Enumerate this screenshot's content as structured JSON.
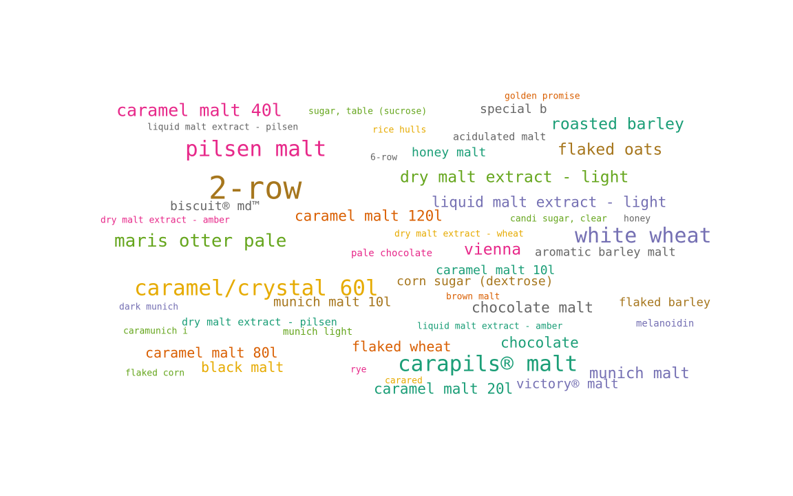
{
  "palette": {
    "teal": "#1b9e77",
    "orange": "#d95f02",
    "purple": "#7570b3",
    "pink": "#e7298a",
    "green": "#66a61e",
    "gold": "#e6ab02",
    "brown": "#a6761d",
    "gray": "#666666"
  },
  "words": [
    {
      "text": "golden promise",
      "color": "orange"
    },
    {
      "text": "caramel malt 40l",
      "color": "pink"
    },
    {
      "text": "sugar, table (sucrose)",
      "color": "green"
    },
    {
      "text": "special b",
      "color": "gray"
    },
    {
      "text": "liquid malt extract - pilsen",
      "color": "gray"
    },
    {
      "text": "rice hulls",
      "color": "gold"
    },
    {
      "text": "roasted barley",
      "color": "teal"
    },
    {
      "text": "acidulated malt",
      "color": "gray"
    },
    {
      "text": "pilsen malt",
      "color": "pink"
    },
    {
      "text": "flaked oats",
      "color": "brown"
    },
    {
      "text": "honey malt",
      "color": "teal"
    },
    {
      "text": "6-row",
      "color": "gray"
    },
    {
      "text": "dry malt extract - light",
      "color": "green"
    },
    {
      "text": "2-row",
      "color": "brown"
    },
    {
      "text": "biscuit® md™",
      "color": "gray"
    },
    {
      "text": "liquid malt extract - light",
      "color": "purple"
    },
    {
      "text": "caramel malt 120l",
      "color": "orange"
    },
    {
      "text": "dry malt extract - amber",
      "color": "pink"
    },
    {
      "text": "candi sugar, clear",
      "color": "green"
    },
    {
      "text": "honey",
      "color": "gray"
    },
    {
      "text": "white wheat",
      "color": "purple"
    },
    {
      "text": "maris otter pale",
      "color": "green"
    },
    {
      "text": "dry malt extract - wheat",
      "color": "gold"
    },
    {
      "text": "vienna",
      "color": "pink"
    },
    {
      "text": "pale chocolate",
      "color": "pink"
    },
    {
      "text": "aromatic barley malt",
      "color": "gray"
    },
    {
      "text": "caramel malt 10l",
      "color": "teal"
    },
    {
      "text": "caramel/crystal 60l",
      "color": "gold"
    },
    {
      "text": "corn sugar (dextrose)",
      "color": "brown"
    },
    {
      "text": "brown malt",
      "color": "orange"
    },
    {
      "text": "munich malt 10l",
      "color": "brown"
    },
    {
      "text": "flaked barley",
      "color": "brown"
    },
    {
      "text": "chocolate malt",
      "color": "gray"
    },
    {
      "text": "dark munich",
      "color": "purple"
    },
    {
      "text": "dry malt extract - pilsen",
      "color": "teal"
    },
    {
      "text": "liquid malt extract - amber",
      "color": "teal"
    },
    {
      "text": "melanoidin",
      "color": "purple"
    },
    {
      "text": "caramunich i",
      "color": "green"
    },
    {
      "text": "munich light",
      "color": "green"
    },
    {
      "text": "chocolate",
      "color": "teal"
    },
    {
      "text": "flaked wheat",
      "color": "orange"
    },
    {
      "text": "caramel malt 80l",
      "color": "orange"
    },
    {
      "text": "carapils® malt",
      "color": "teal"
    },
    {
      "text": "black malt",
      "color": "gold"
    },
    {
      "text": "munich malt",
      "color": "purple"
    },
    {
      "text": "flaked corn",
      "color": "green"
    },
    {
      "text": "rye",
      "color": "pink"
    },
    {
      "text": "carared",
      "color": "gold"
    },
    {
      "text": "victory® malt",
      "color": "purple"
    },
    {
      "text": "caramel malt 20l",
      "color": "teal"
    }
  ]
}
